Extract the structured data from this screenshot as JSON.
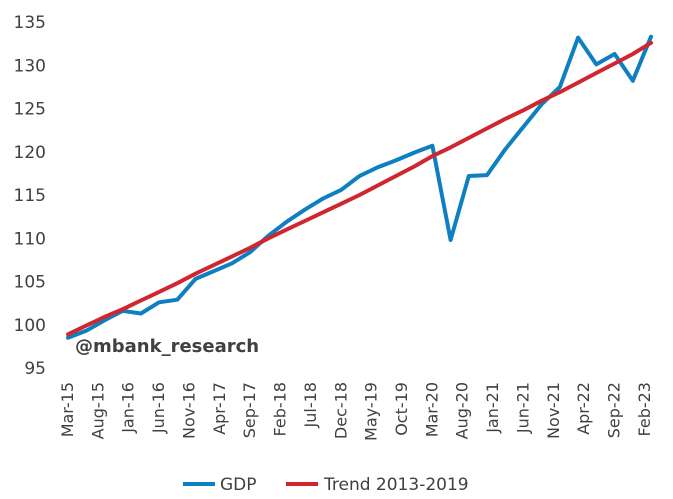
{
  "chart_data": {
    "type": "line",
    "watermark": "@mbank_research",
    "ylim": [
      95,
      135
    ],
    "yticks": [
      95,
      100,
      105,
      110,
      115,
      120,
      125,
      130,
      135
    ],
    "grid": false,
    "legend_position": "bottom",
    "x_tick_labels": [
      "Mar-15",
      "Aug-15",
      "Jan-16",
      "Jun-16",
      "Nov-16",
      "Apr-17",
      "Sep-17",
      "Feb-18",
      "Jul-18",
      "Dec-18",
      "May-19",
      "Oct-19",
      "Mar-20",
      "Aug-20",
      "Jan-21",
      "Jun-21",
      "Nov-21",
      "Apr-22",
      "Sep-22",
      "Feb-23"
    ],
    "x": [
      "Mar-15",
      "Jun-15",
      "Sep-15",
      "Dec-15",
      "Mar-16",
      "Jun-16",
      "Sep-16",
      "Dec-16",
      "Mar-17",
      "Jun-17",
      "Sep-17",
      "Dec-17",
      "Mar-18",
      "Jun-18",
      "Sep-18",
      "Dec-18",
      "Mar-19",
      "Jun-19",
      "Sep-19",
      "Dec-19",
      "Mar-20",
      "Jun-20",
      "Sep-20",
      "Dec-20",
      "Mar-21",
      "Jun-21",
      "Sep-21",
      "Dec-21",
      "Mar-22",
      "Jun-22",
      "Sep-22",
      "Dec-22",
      "Mar-23"
    ],
    "series": [
      {
        "name": "GDP",
        "color": "#0E7FC0",
        "values": [
          98.5,
          99.3,
          100.5,
          101.6,
          101.3,
          102.6,
          102.9,
          105.3,
          106.2,
          107.1,
          108.4,
          110.3,
          111.9,
          113.3,
          114.6,
          115.6,
          117.2,
          118.2,
          119.0,
          119.9,
          120.7,
          109.8,
          117.2,
          117.3,
          120.3,
          122.9,
          125.5,
          127.5,
          133.2,
          130.1,
          131.3,
          128.2,
          133.3
        ]
      },
      {
        "name": "Trend 2013-2019",
        "color": "#D0272F",
        "values": [
          98.9,
          99.9,
          100.9,
          101.8,
          102.8,
          103.8,
          104.8,
          105.9,
          106.9,
          107.9,
          108.9,
          110.0,
          111.0,
          112.0,
          113.0,
          114.0,
          115.0,
          116.1,
          117.2,
          118.3,
          119.5,
          120.5,
          121.6,
          122.7,
          123.8,
          124.8,
          125.9,
          126.9,
          128.0,
          129.1,
          130.2,
          131.3,
          132.6
        ]
      }
    ]
  }
}
